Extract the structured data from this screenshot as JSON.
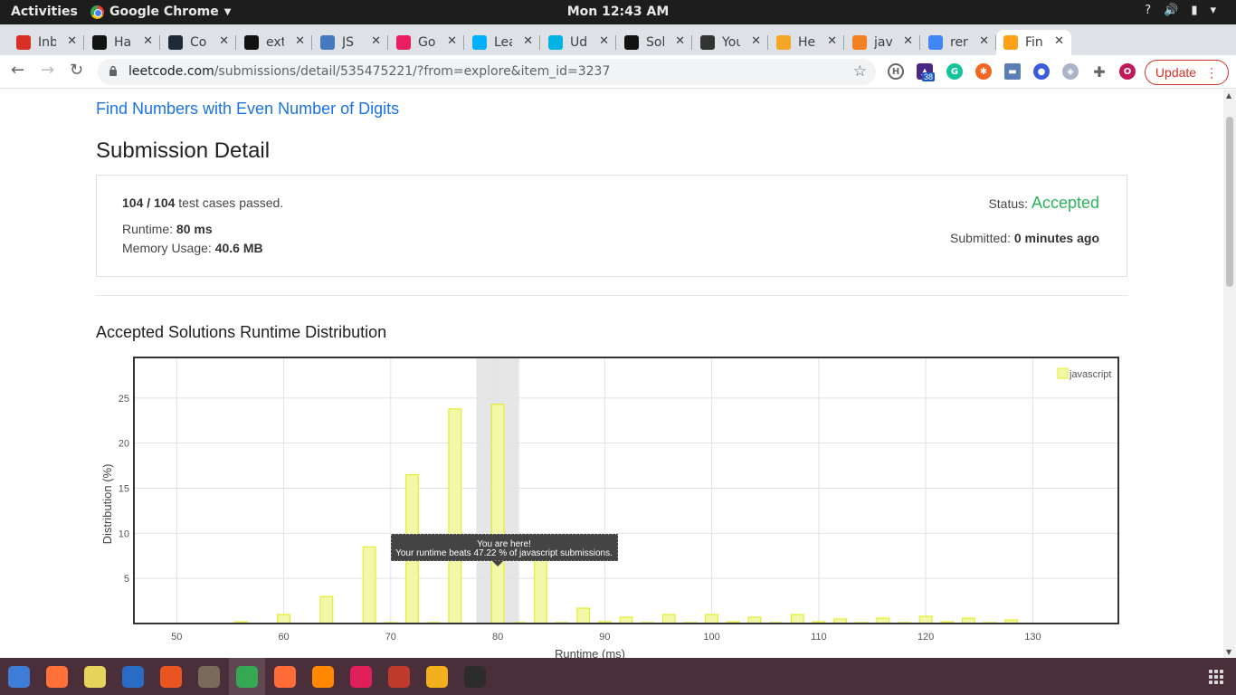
{
  "system": {
    "activities": "Activities",
    "app_name": "Google Chrome",
    "clock": "Mon 12:43 AM"
  },
  "browser": {
    "tabs": [
      {
        "label": "Inb",
        "icon": "gmail-icon",
        "color": "#d93025"
      },
      {
        "label": "Ha",
        "icon": "hackerrank-icon",
        "color": "#111111"
      },
      {
        "label": "Co",
        "icon": "x-icon",
        "color": "#1e2a38"
      },
      {
        "label": "ext",
        "icon": "codesandbox-icon",
        "color": "#111111"
      },
      {
        "label": "JS",
        "icon": "jsfiddle-icon",
        "color": "#4679bd"
      },
      {
        "label": "Go",
        "icon": "glitch-icon",
        "color": "#e91e63"
      },
      {
        "label": "Lea",
        "icon": "k-icon",
        "color": "#00b1ff"
      },
      {
        "label": "Ud",
        "icon": "udacity-icon",
        "color": "#02b3e4"
      },
      {
        "label": "Sol",
        "icon": "hackerrank-icon",
        "color": "#111111"
      },
      {
        "label": "You",
        "icon": "github-icon",
        "color": "#333333"
      },
      {
        "label": "He",
        "icon": "chevrons-icon",
        "color": "#f5a623"
      },
      {
        "label": "jav",
        "icon": "stackoverflow-icon",
        "color": "#f48024"
      },
      {
        "label": "ren",
        "icon": "google-icon",
        "color": "#4285f4"
      },
      {
        "label": "Fin",
        "icon": "leetcode-icon",
        "color": "#ffa116",
        "active": true
      }
    ],
    "url_host": "leetcode.com",
    "url_path": "/submissions/detail/535475221/?from=explore&item_id=3237",
    "update_label": "Update",
    "extension_badge": "38",
    "profile_initial": "O"
  },
  "page": {
    "problem_link": "Find Numbers with Even Number of Digits",
    "heading": "Submission Detail",
    "tests_passed": "104 / 104",
    "tests_suffix": "test cases passed.",
    "runtime_label": "Runtime:",
    "runtime_value": "80 ms",
    "memory_label": "Memory Usage:",
    "memory_value": "40.6 MB",
    "status_label": "Status:",
    "status_value": "Accepted",
    "submitted_label": "Submitted:",
    "submitted_value": "0 minutes ago",
    "dist_title": "Accepted Solutions Runtime Distribution"
  },
  "chart_data": {
    "type": "bar",
    "title": "Accepted Solutions Runtime Distribution",
    "xlabel": "Runtime (ms)",
    "ylabel": "Distribution (%)",
    "xlim": [
      46,
      138
    ],
    "ylim": [
      0,
      29.5
    ],
    "xticks": [
      50,
      60,
      70,
      80,
      90,
      100,
      110,
      120,
      130
    ],
    "yticks": [
      5,
      10,
      15,
      20,
      25
    ],
    "legend": "javascript",
    "legend_position": "top-right",
    "highlight_runtime": 80,
    "tooltip_line1": "You are here!",
    "tooltip_line2": "Your runtime beats 47.22 % of javascript submissions.",
    "series": [
      {
        "name": "javascript",
        "x": [
          56,
          60,
          64,
          68,
          70,
          72,
          74,
          76,
          80,
          82,
          84,
          86,
          88,
          90,
          92,
          94,
          96,
          98,
          100,
          102,
          104,
          106,
          108,
          110,
          112,
          114,
          116,
          118,
          120,
          122,
          124,
          126,
          128
        ],
        "values": [
          0.2,
          1.0,
          3.0,
          8.5,
          0.1,
          16.5,
          0.1,
          23.8,
          24.3,
          0.1,
          8.0,
          0.1,
          1.7,
          0.2,
          0.7,
          0.1,
          1.0,
          0.1,
          1.0,
          0.2,
          0.7,
          0.1,
          1.0,
          0.2,
          0.5,
          0.1,
          0.6,
          0.1,
          0.8,
          0.2,
          0.6,
          0.1,
          0.4
        ]
      }
    ]
  },
  "taskbar": {
    "apps": [
      {
        "name": "thunderbird-icon",
        "color": "#3d7dd8"
      },
      {
        "name": "firefox-icon",
        "color": "#ff7139"
      },
      {
        "name": "rhythmbox-icon",
        "color": "#e6d35c"
      },
      {
        "name": "libreoffice-writer-icon",
        "color": "#2a6cc4"
      },
      {
        "name": "software-center-icon",
        "color": "#e95420"
      },
      {
        "name": "archive-manager-icon",
        "color": "#7a6a5a"
      },
      {
        "name": "chrome-icon",
        "color": "#34a853"
      },
      {
        "name": "postman-icon",
        "color": "#ff6c37"
      },
      {
        "name": "vlc-icon",
        "color": "#ff8800"
      },
      {
        "name": "slack-icon",
        "color": "#e01e5a"
      },
      {
        "name": "flameshot-icon",
        "color": "#c0392b"
      },
      {
        "name": "notes-icon",
        "color": "#f2b01e"
      },
      {
        "name": "terminal-icon",
        "color": "#2c2c2c"
      }
    ]
  }
}
